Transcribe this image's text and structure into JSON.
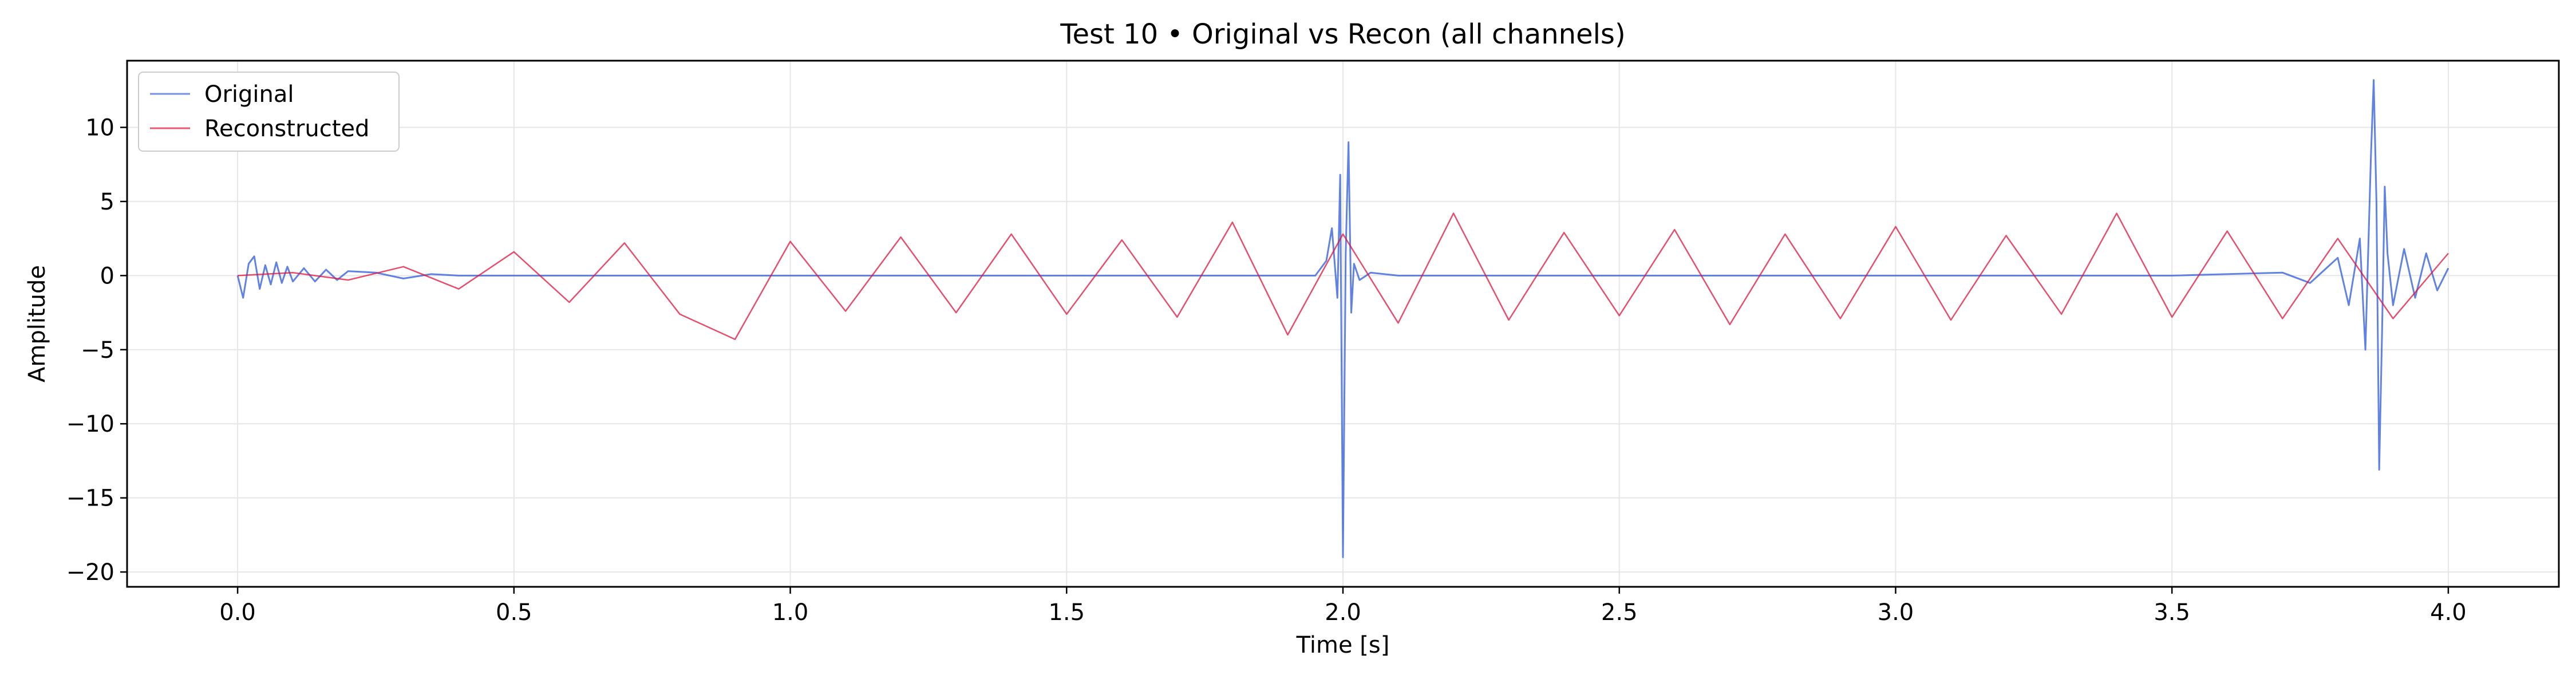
{
  "chart_data": {
    "type": "line",
    "title": "Test 10 • Original vs Recon (all channels)",
    "xlabel": "Time [s]",
    "ylabel": "Amplitude",
    "xlim": [
      -0.2,
      4.2
    ],
    "ylim": [
      -21,
      14.5
    ],
    "xticks": [
      0.0,
      0.5,
      1.0,
      1.5,
      2.0,
      2.5,
      3.0,
      3.5,
      4.0
    ],
    "xtick_labels": [
      "0.0",
      "0.5",
      "1.0",
      "1.5",
      "2.0",
      "2.5",
      "3.0",
      "3.5",
      "4.0"
    ],
    "yticks": [
      10,
      5,
      0,
      -5,
      -10,
      -15,
      -20
    ],
    "ytick_labels": [
      "10",
      "5",
      "0",
      "−5",
      "−10",
      "−15",
      "−20"
    ],
    "grid": true,
    "legend": "top-left",
    "series": [
      {
        "name": "Original",
        "color": "#3a63d8",
        "x": [
          0.0,
          0.01,
          0.02,
          0.03,
          0.04,
          0.05,
          0.06,
          0.07,
          0.08,
          0.09,
          0.1,
          0.12,
          0.14,
          0.16,
          0.18,
          0.2,
          0.25,
          0.3,
          0.35,
          0.4,
          0.5,
          0.6,
          0.8,
          1.0,
          1.2,
          1.4,
          1.6,
          1.8,
          1.9,
          1.95,
          1.97,
          1.98,
          1.99,
          1.995,
          2.0,
          2.005,
          2.01,
          2.015,
          2.02,
          2.03,
          2.05,
          2.1,
          2.5,
          3.0,
          3.5,
          3.7,
          3.75,
          3.8,
          3.82,
          3.84,
          3.85,
          3.86,
          3.865,
          3.87,
          3.875,
          3.88,
          3.885,
          3.89,
          3.9,
          3.92,
          3.94,
          3.96,
          3.98,
          4.0
        ],
        "values": [
          0.0,
          -1.5,
          0.8,
          1.3,
          -0.9,
          0.7,
          -0.6,
          0.9,
          -0.5,
          0.6,
          -0.4,
          0.5,
          -0.4,
          0.4,
          -0.3,
          0.3,
          0.2,
          -0.2,
          0.1,
          0.0,
          0.0,
          0.0,
          0.0,
          0.0,
          0.0,
          0.0,
          0.0,
          0.0,
          0.0,
          0.0,
          1.0,
          3.2,
          -1.5,
          6.8,
          -19.0,
          1.5,
          9.0,
          -2.5,
          0.8,
          -0.3,
          0.2,
          0.0,
          0.0,
          0.0,
          0.0,
          0.2,
          -0.5,
          1.2,
          -2.0,
          2.5,
          -5.0,
          8.0,
          13.2,
          5.0,
          -13.1,
          -4.0,
          6.0,
          1.5,
          -2.0,
          1.8,
          -1.5,
          1.5,
          -1.0,
          0.5
        ]
      },
      {
        "name": "Reconstructed",
        "color": "#dc143c",
        "x": [
          0.0,
          0.1,
          0.2,
          0.3,
          0.4,
          0.5,
          0.6,
          0.7,
          0.8,
          0.9,
          1.0,
          1.1,
          1.2,
          1.3,
          1.4,
          1.5,
          1.6,
          1.7,
          1.8,
          1.9,
          2.0,
          2.1,
          2.2,
          2.3,
          2.4,
          2.5,
          2.6,
          2.7,
          2.8,
          2.9,
          3.0,
          3.1,
          3.2,
          3.3,
          3.4,
          3.5,
          3.6,
          3.7,
          3.8,
          3.9,
          4.0
        ],
        "values": [
          0.0,
          0.2,
          -0.3,
          0.6,
          -0.9,
          1.6,
          -1.8,
          2.2,
          -2.6,
          -4.3,
          2.3,
          -2.4,
          2.6,
          -2.5,
          2.8,
          -2.6,
          2.4,
          -2.8,
          3.6,
          -4.0,
          2.8,
          -3.2,
          4.2,
          -3.0,
          2.9,
          -2.7,
          3.1,
          -3.3,
          2.8,
          -2.9,
          3.3,
          -3.0,
          2.7,
          -2.6,
          4.2,
          -2.8,
          3.0,
          -2.9,
          2.5,
          -2.9,
          1.5
        ]
      }
    ]
  }
}
